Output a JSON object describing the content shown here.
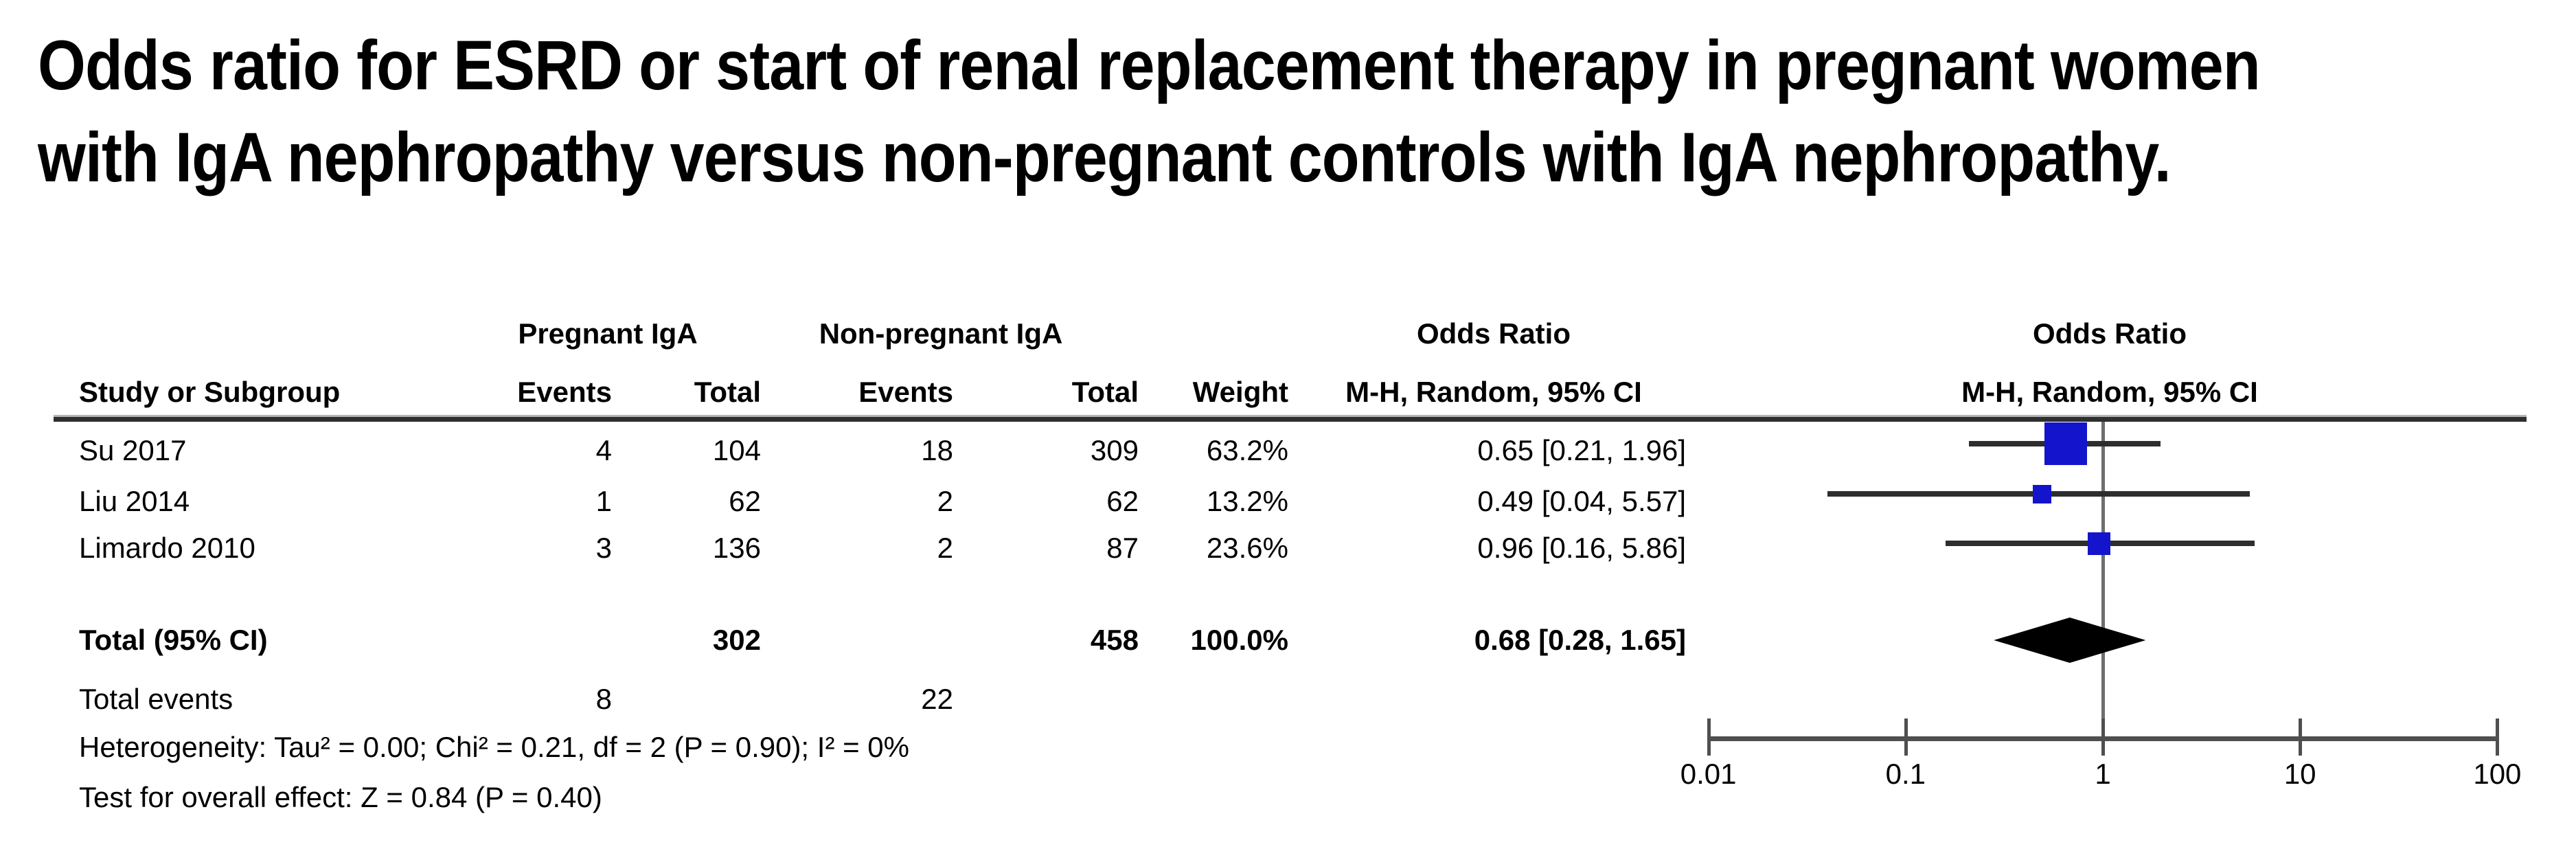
{
  "title_lines": [
    "Odds ratio for ESRD or start of renal replacement therapy in pregnant women",
    "with IgA nephropathy versus non-pregnant controls with IgA nephropathy."
  ],
  "table": {
    "group_headers": {
      "pregnant": "Pregnant IgA",
      "non_pregnant": "Non-pregnant IgA",
      "odds_ratio_text_col": "Odds Ratio",
      "odds_ratio_plot_col": "Odds Ratio"
    },
    "column_headers": {
      "study": "Study or Subgroup",
      "events_pregnant": "Events",
      "total_pregnant": "Total",
      "events_non_pregnant": "Events",
      "total_non_pregnant": "Total",
      "weight": "Weight",
      "mh_text_col": "M-H, Random, 95% CI",
      "mh_plot_col": "M-H, Random, 95% CI"
    }
  },
  "chart_data": {
    "type": "scatter",
    "variant": "forest-plot, Mantel-Haenszel random-effects odds ratios",
    "x_scale": "log10",
    "x_range": [
      0.01,
      100
    ],
    "x_ticks": [
      "0.01",
      "0.1",
      "1",
      "10",
      "100"
    ],
    "x_tick_values": [
      0.01,
      0.1,
      1,
      10,
      100
    ],
    "reference_line": 1,
    "studies": [
      {
        "name": "Su 2017",
        "events_pregnant": 4,
        "total_pregnant": 104,
        "events_non_pregnant": 18,
        "total_non_pregnant": 309,
        "weight": "63.2%",
        "weight_value": 63.2,
        "or": 0.65,
        "ci_low": 0.21,
        "ci_high": 1.96,
        "or_label": "0.65 [0.21, 1.96]"
      },
      {
        "name": "Liu 2014",
        "events_pregnant": 1,
        "total_pregnant": 62,
        "events_non_pregnant": 2,
        "total_non_pregnant": 62,
        "weight": "13.2%",
        "weight_value": 13.2,
        "or": 0.49,
        "ci_low": 0.04,
        "ci_high": 5.57,
        "or_label": "0.49 [0.04, 5.57]"
      },
      {
        "name": "Limardo 2010",
        "events_pregnant": 3,
        "total_pregnant": 136,
        "events_non_pregnant": 2,
        "total_non_pregnant": 87,
        "weight": "23.6%",
        "weight_value": 23.6,
        "or": 0.96,
        "ci_low": 0.16,
        "ci_high": 5.86,
        "or_label": "0.96 [0.16, 5.86]"
      }
    ],
    "total": {
      "label": "Total (95% CI)",
      "total_pregnant": 302,
      "total_non_pregnant": 458,
      "weight": "100.0%",
      "or": 0.68,
      "ci_low": 0.28,
      "ci_high": 1.65,
      "or_label": "0.68 [0.28, 1.65]"
    },
    "total_events": {
      "label": "Total events",
      "pregnant": 8,
      "non_pregnant": 22
    },
    "heterogeneity": "Heterogeneity: Tau² = 0.00; Chi² = 0.21, df = 2 (P = 0.90); I² = 0%",
    "overall_effect": "Test for overall effect: Z = 0.84 (P = 0.40)",
    "colors": {
      "marker": "#1414CC",
      "diamond": "#000000",
      "ci_line": "#2e2e2e",
      "axis": "#4f4f4f",
      "reference_line": "#6e6e6e"
    }
  }
}
